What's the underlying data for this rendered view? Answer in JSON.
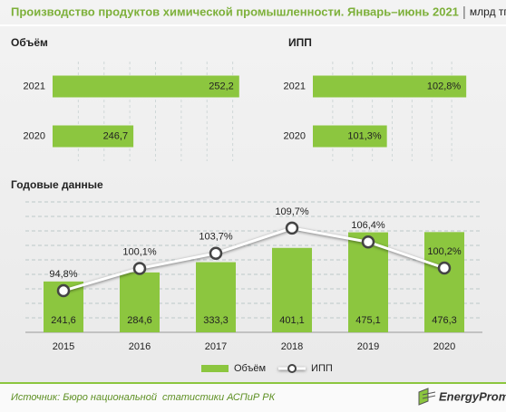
{
  "header": {
    "title": "Производство продуктов химической промышленности. Январь–июнь 2021",
    "unit": "млрд тг"
  },
  "chart_data": [
    {
      "type": "barh",
      "title": "Объём",
      "categories": [
        "2021",
        "2020"
      ],
      "values": [
        252.2,
        246.7
      ],
      "value_labels": [
        "252,2",
        "246,7"
      ],
      "color": "#8cc63f",
      "xlim": [
        242.5,
        253.2
      ]
    },
    {
      "type": "barh",
      "title": "ИПП",
      "categories": [
        "2021",
        "2020"
      ],
      "values": [
        102.8,
        101.3
      ],
      "value_labels": [
        "102,8%",
        "101,3%"
      ],
      "color": "#8cc63f",
      "xlim": [
        99.9,
        102.9
      ]
    },
    {
      "type": "combo",
      "title": "Годовые данные",
      "categories": [
        "2015",
        "2016",
        "2017",
        "2018",
        "2019",
        "2020"
      ],
      "ylim": [
        0,
        667
      ],
      "y2lim": [
        84.9,
        118.3
      ],
      "series": [
        {
          "name": "Объём",
          "type": "bar",
          "color": "#8cc63f",
          "values": [
            241.6,
            284.6,
            333.3,
            401.1,
            475.1,
            476.3
          ],
          "value_labels": [
            "241,6",
            "284,6",
            "333,3",
            "401,1",
            "475,1",
            "476,3"
          ]
        },
        {
          "name": "ИПП",
          "type": "line",
          "axis": "y2",
          "color": "#ffffff",
          "values": [
            94.8,
            100.1,
            103.7,
            109.7,
            106.4,
            100.2
          ],
          "value_labels": [
            "94,8%",
            "100,1%",
            "103,7%",
            "109,7%",
            "106,4%",
            "100,2%"
          ]
        }
      ]
    }
  ],
  "footer": {
    "source": "Источник: Бюро национальной  статистики АСПиР РК",
    "logo": "EnergyProm"
  }
}
